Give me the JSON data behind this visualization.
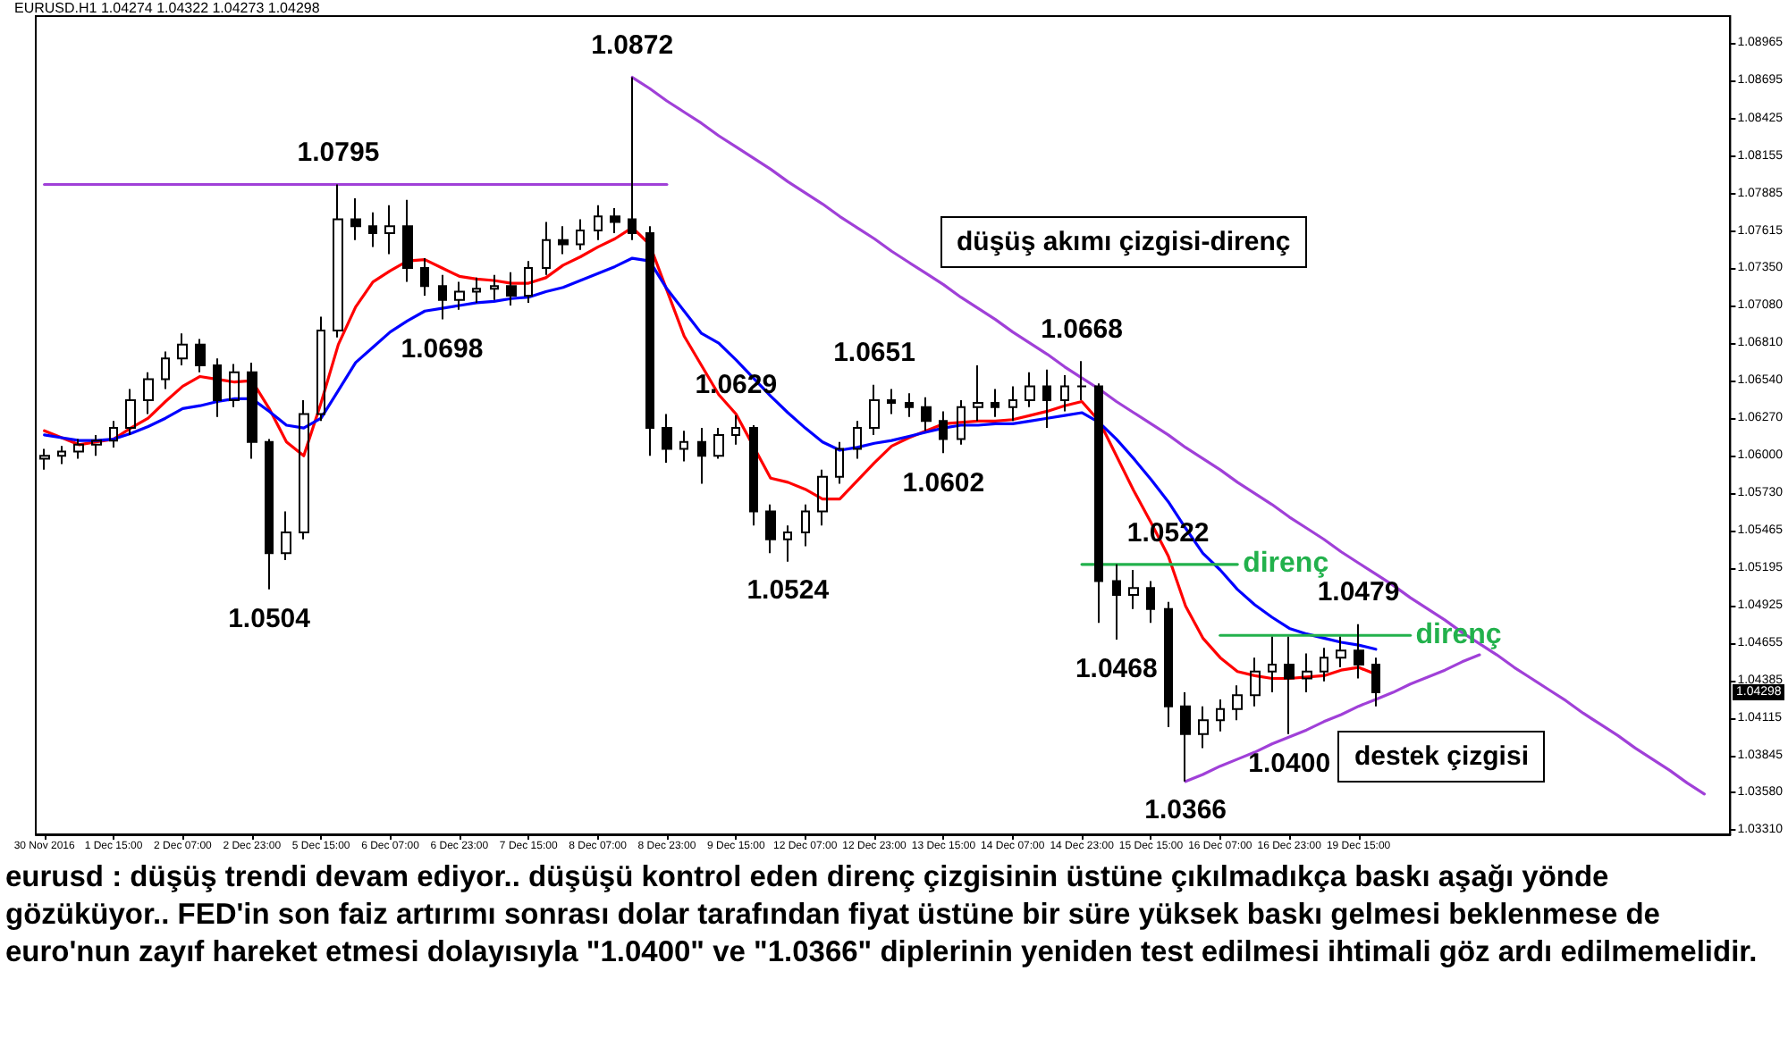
{
  "chart_data": {
    "type": "candlestick",
    "color": "#000000",
    "ylim": [
      1.0328,
      1.0916
    ],
    "yticks": [
      1.08965,
      1.08695,
      1.08425,
      1.08155,
      1.07885,
      1.07615,
      {
        "value": 1.0735,
        "label": "1.07350"
      },
      {
        "value": 1.0708,
        "label": "1.07080"
      },
      {
        "value": 1.0681,
        "label": "1.06810"
      },
      {
        "value": 1.0654,
        "label": "1.06540"
      },
      {
        "value": 1.0627,
        "label": "1.06270"
      },
      {
        "value": 1.06,
        "label": "1.06000"
      },
      {
        "value": 1.0573,
        "label": "1.05730"
      },
      1.05465,
      1.05195,
      1.04925,
      1.04655,
      1.04385,
      1.04115,
      1.03845,
      {
        "value": 1.0358,
        "label": "1.03580"
      },
      {
        "value": 1.0331,
        "label": "1.03310"
      }
    ],
    "marker": "none",
    "grid": false,
    "categories": [
      "30 Nov 2016",
      null,
      null,
      null,
      "1 Dec 15:00",
      null,
      null,
      null,
      "2 Dec 07:00",
      null,
      null,
      null,
      "2 Dec 23:00",
      null,
      null,
      null,
      "5 Dec 15:00",
      null,
      null,
      null,
      "6 Dec 07:00",
      null,
      null,
      null,
      "6 Dec 23:00",
      null,
      null,
      null,
      "7 Dec 15:00",
      null,
      null,
      null,
      "8 Dec 07:00",
      null,
      null,
      null,
      "8 Dec 23:00",
      null,
      null,
      null,
      "9 Dec 15:00",
      null,
      null,
      null,
      "12 Dec 07:00",
      null,
      null,
      null,
      "12 Dec 23:00",
      null,
      null,
      null,
      "13 Dec 15:00",
      null,
      null,
      null,
      "14 Dec 07:00",
      null,
      null,
      null,
      "14 Dec 23:00",
      null,
      null,
      null,
      "15 Dec 15:00",
      null,
      null,
      null,
      "16 Dec 07:00",
      null,
      null,
      null,
      "16 Dec 23:00",
      null,
      null,
      null,
      "19 Dec 15:00",
      null,
      null,
      null,
      null,
      null,
      null,
      null,
      null,
      null,
      null,
      null,
      null,
      null,
      null,
      null,
      null,
      null,
      null,
      null,
      null,
      null
    ],
    "ohlc": [
      [
        1.0598,
        1.0605,
        1.059,
        1.06
      ],
      [
        1.06,
        1.0607,
        1.0594,
        1.0603
      ],
      [
        1.0603,
        1.0612,
        1.0598,
        1.0608
      ],
      [
        1.0608,
        1.0615,
        1.06,
        1.0611
      ],
      [
        1.0611,
        1.0625,
        1.0606,
        1.062
      ],
      [
        1.062,
        1.0648,
        1.0615,
        1.064
      ],
      [
        1.064,
        1.066,
        1.063,
        1.0655
      ],
      [
        1.0655,
        1.0675,
        1.0648,
        1.067
      ],
      [
        1.067,
        1.0688,
        1.0665,
        1.068
      ],
      [
        1.068,
        1.0684,
        1.066,
        1.0665
      ],
      [
        1.0665,
        1.067,
        1.0628,
        1.064
      ],
      [
        1.064,
        1.0666,
        1.0635,
        1.066
      ],
      [
        1.066,
        1.0667,
        1.0598,
        1.061
      ],
      [
        1.061,
        1.0612,
        1.0504,
        1.053
      ],
      [
        1.053,
        1.056,
        1.0525,
        1.0545
      ],
      [
        1.0545,
        1.064,
        1.054,
        1.063
      ],
      [
        1.063,
        1.07,
        1.0625,
        1.069
      ],
      [
        1.069,
        1.0795,
        1.0685,
        1.077
      ],
      [
        1.077,
        1.0785,
        1.0755,
        1.0765
      ],
      [
        1.0765,
        1.0775,
        1.075,
        1.076
      ],
      [
        1.076,
        1.078,
        1.0745,
        1.0765
      ],
      [
        1.0765,
        1.0784,
        1.0725,
        1.0735
      ],
      [
        1.0735,
        1.0742,
        1.0715,
        1.0722
      ],
      [
        1.0722,
        1.073,
        1.0698,
        1.0712
      ],
      [
        1.0712,
        1.0725,
        1.0705,
        1.0718
      ],
      [
        1.0718,
        1.0728,
        1.071,
        1.072
      ],
      [
        1.072,
        1.073,
        1.0712,
        1.0722
      ],
      [
        1.0722,
        1.0732,
        1.0708,
        1.0715
      ],
      [
        1.0715,
        1.074,
        1.071,
        1.0735
      ],
      [
        1.0735,
        1.0768,
        1.073,
        1.0755
      ],
      [
        1.0755,
        1.0765,
        1.0745,
        1.0752
      ],
      [
        1.0752,
        1.077,
        1.0748,
        1.0762
      ],
      [
        1.0762,
        1.078,
        1.0755,
        1.0772
      ],
      [
        1.0772,
        1.0778,
        1.076,
        1.0768
      ],
      [
        1.077,
        1.0872,
        1.0755,
        1.076
      ],
      [
        1.076,
        1.0765,
        1.06,
        1.062
      ],
      [
        1.062,
        1.063,
        1.0595,
        1.0605
      ],
      [
        1.0605,
        1.0618,
        1.0596,
        1.061
      ],
      [
        1.061,
        1.062,
        1.058,
        1.06
      ],
      [
        1.06,
        1.062,
        1.0598,
        1.0615
      ],
      [
        1.0615,
        1.0629,
        1.0608,
        1.062
      ],
      [
        1.062,
        1.0622,
        1.055,
        1.056
      ],
      [
        1.056,
        1.0565,
        1.053,
        1.054
      ],
      [
        1.054,
        1.055,
        1.0524,
        1.0545
      ],
      [
        1.0545,
        1.0565,
        1.0535,
        1.056
      ],
      [
        1.056,
        1.059,
        1.055,
        1.0585
      ],
      [
        1.0585,
        1.061,
        1.058,
        1.0605
      ],
      [
        1.0605,
        1.0625,
        1.0598,
        1.062
      ],
      [
        1.062,
        1.0651,
        1.0615,
        1.064
      ],
      [
        1.064,
        1.0648,
        1.063,
        1.0638
      ],
      [
        1.0638,
        1.0645,
        1.0628,
        1.0635
      ],
      [
        1.0635,
        1.0642,
        1.0618,
        1.0625
      ],
      [
        1.0625,
        1.0632,
        1.0602,
        1.0612
      ],
      [
        1.0612,
        1.064,
        1.0608,
        1.0635
      ],
      [
        1.0635,
        1.0665,
        1.0625,
        1.0638
      ],
      [
        1.0638,
        1.0648,
        1.0628,
        1.0635
      ],
      [
        1.0635,
        1.065,
        1.0625,
        1.064
      ],
      [
        1.064,
        1.066,
        1.0635,
        1.065
      ],
      [
        1.065,
        1.0662,
        1.062,
        1.064
      ],
      [
        1.064,
        1.0658,
        1.0632,
        1.065
      ],
      [
        1.065,
        1.0668,
        1.064,
        1.065
      ],
      [
        1.065,
        1.0652,
        1.048,
        1.051
      ],
      [
        1.051,
        1.0522,
        1.0468,
        1.05
      ],
      [
        1.05,
        1.0518,
        1.049,
        1.0505
      ],
      [
        1.0505,
        1.051,
        1.048,
        1.049
      ],
      [
        1.049,
        1.0495,
        1.0405,
        1.042
      ],
      [
        1.042,
        1.043,
        1.0366,
        1.04
      ],
      [
        1.04,
        1.042,
        1.039,
        1.041
      ],
      [
        1.041,
        1.0425,
        1.0402,
        1.0418
      ],
      [
        1.0418,
        1.0435,
        1.041,
        1.0428
      ],
      [
        1.0428,
        1.0455,
        1.042,
        1.0445
      ],
      [
        1.0445,
        1.047,
        1.043,
        1.045
      ],
      [
        1.045,
        1.047,
        1.04,
        1.044
      ],
      [
        1.044,
        1.0458,
        1.043,
        1.0445
      ],
      [
        1.0445,
        1.0462,
        1.0438,
        1.0455
      ],
      [
        1.0455,
        1.047,
        1.0448,
        1.046
      ],
      [
        1.046,
        1.0479,
        1.044,
        1.045
      ],
      [
        1.045,
        1.0455,
        1.042,
        1.043
      ],
      null,
      null,
      null,
      null,
      null,
      null,
      null,
      null,
      null,
      null,
      null,
      null,
      null,
      null,
      null,
      null,
      null,
      null,
      null,
      null
    ],
    "series": [
      {
        "type": "line",
        "color": "#ff0000",
        "values": [
          1.0618,
          1.0613,
          1.0608,
          1.061,
          1.0612,
          1.062,
          1.0627,
          1.0639,
          1.065,
          1.0657,
          1.0655,
          1.0653,
          1.0654,
          1.0634,
          1.061,
          1.06,
          1.0638,
          1.068,
          1.0707,
          1.0725,
          1.0733,
          1.074,
          1.0741,
          1.0735,
          1.0729,
          1.0727,
          1.0726,
          1.0724,
          1.0724,
          1.0728,
          1.0737,
          1.0743,
          1.075,
          1.0756,
          1.0764,
          1.0752,
          1.0719,
          1.0686,
          1.0665,
          1.0644,
          1.063,
          1.0607,
          1.0584,
          1.0581,
          1.0576,
          1.0569,
          1.0569,
          1.0582,
          1.0595,
          1.0607,
          1.0613,
          1.0618,
          1.0623,
          1.0624,
          1.0625,
          1.0625,
          1.0626,
          1.0629,
          1.0632,
          1.0636,
          1.0639,
          1.0625,
          1.06,
          1.0575,
          1.0552,
          1.0528,
          1.0492,
          1.0469,
          1.0455,
          1.0445,
          1.0442,
          1.044,
          1.044,
          1.0441,
          1.0442,
          1.0446,
          1.0448,
          1.0443,
          null,
          null,
          null,
          null,
          null,
          null,
          null,
          null,
          null,
          null,
          null,
          null,
          null,
          null,
          null,
          null,
          null,
          null,
          null,
          null
        ]
      },
      {
        "type": "line",
        "color": "#0000ff",
        "values": [
          1.0615,
          1.0613,
          1.0611,
          1.0611,
          1.0612,
          1.0616,
          1.0621,
          1.0627,
          1.0634,
          1.0636,
          1.0639,
          1.0641,
          1.0641,
          1.0632,
          1.0622,
          1.062,
          1.0627,
          1.0647,
          1.0667,
          1.0678,
          1.0689,
          1.0697,
          1.0704,
          1.0706,
          1.0708,
          1.071,
          1.0711,
          1.0713,
          1.0714,
          1.0718,
          1.0721,
          1.0726,
          1.0731,
          1.0736,
          1.0742,
          1.074,
          1.072,
          1.0704,
          1.0688,
          1.0681,
          1.0669,
          1.0656,
          1.0643,
          1.0631,
          1.062,
          1.061,
          1.0604,
          1.0606,
          1.0609,
          1.0611,
          1.0614,
          1.0617,
          1.062,
          1.0622,
          1.0622,
          1.0623,
          1.0623,
          1.0625,
          1.0627,
          1.0629,
          1.0631,
          1.0624,
          1.0612,
          1.0598,
          1.0583,
          1.0567,
          1.0548,
          1.053,
          1.0518,
          1.0504,
          1.0493,
          1.0484,
          1.0476,
          1.0472,
          1.0469,
          1.0466,
          1.0464,
          1.0461,
          null,
          null,
          null,
          null,
          null,
          null,
          null,
          null,
          null,
          null,
          null,
          null,
          null,
          null,
          null,
          null,
          null,
          null,
          null,
          null
        ]
      },
      {
        "type": "line",
        "color": "#a040d8",
        "values": [
          1.0795,
          1.0795,
          1.0795,
          1.0795,
          1.0795,
          1.0795,
          1.0795,
          1.0795,
          1.0795,
          1.0795,
          1.0795,
          1.0795,
          1.0795,
          1.0795,
          1.0795,
          1.0795,
          1.0795,
          1.0795,
          1.0795,
          1.0795,
          1.0795,
          1.0795,
          1.0795,
          1.0795,
          1.0795,
          1.0795,
          1.0795,
          1.0795,
          1.0795,
          1.0795,
          1.0795,
          1.0795,
          1.0795,
          1.0795,
          1.0795,
          1.0795,
          1.0795,
          null,
          null,
          null,
          null,
          null,
          null,
          null,
          null,
          null,
          null,
          null,
          null,
          null,
          null,
          null,
          null,
          null,
          null,
          null,
          null,
          null,
          null,
          null,
          null,
          null,
          null,
          null,
          null,
          null,
          null,
          null,
          null,
          null,
          null,
          null,
          null,
          null,
          null,
          null,
          null,
          null,
          null,
          null,
          null,
          null,
          null,
          null,
          null,
          null,
          null,
          null,
          null,
          null,
          null,
          null,
          null,
          null,
          null,
          null,
          null,
          null
        ]
      },
      {
        "type": "line",
        "name": "düşüş akımı çizgisi-direnç",
        "color": "#a040d8",
        "values": [
          null,
          null,
          null,
          null,
          null,
          null,
          null,
          null,
          null,
          null,
          null,
          null,
          null,
          null,
          null,
          null,
          null,
          null,
          null,
          null,
          null,
          null,
          null,
          null,
          null,
          null,
          null,
          null,
          null,
          null,
          null,
          null,
          null,
          null,
          1.0872,
          1.0864,
          1.0855,
          1.0847,
          1.0839,
          1.083,
          1.0822,
          1.0814,
          1.0806,
          1.0797,
          1.0789,
          1.0781,
          1.0772,
          1.0764,
          1.0756,
          1.0747,
          1.0739,
          1.0731,
          1.0723,
          1.0714,
          1.0706,
          1.0698,
          1.0689,
          1.0681,
          1.0673,
          1.0664,
          1.0656,
          1.0648,
          1.0639,
          1.0631,
          1.0623,
          1.0615,
          1.0606,
          1.0598,
          1.059,
          1.0581,
          1.0573,
          1.0565,
          1.0556,
          1.0548,
          1.054,
          1.0531,
          1.0523,
          1.0515,
          1.0507,
          1.0498,
          1.049,
          1.0482,
          1.0473,
          1.0465,
          1.0457,
          1.0448,
          1.044,
          1.0432,
          1.0424,
          1.0415,
          1.0407,
          1.0399,
          1.039,
          1.0382,
          1.0374,
          1.0365,
          1.0357,
          null
        ]
      },
      {
        "type": "line",
        "name": "destek çizgisi",
        "color": "#a040d8",
        "values": [
          null,
          null,
          null,
          null,
          null,
          null,
          null,
          null,
          null,
          null,
          null,
          null,
          null,
          null,
          null,
          null,
          null,
          null,
          null,
          null,
          null,
          null,
          null,
          null,
          null,
          null,
          null,
          null,
          null,
          null,
          null,
          null,
          null,
          null,
          null,
          null,
          null,
          null,
          null,
          null,
          null,
          null,
          null,
          null,
          null,
          null,
          null,
          null,
          null,
          null,
          null,
          null,
          null,
          null,
          null,
          null,
          null,
          null,
          null,
          null,
          null,
          null,
          null,
          null,
          null,
          null,
          1.0366,
          1.0371,
          1.0377,
          1.0382,
          1.0387,
          1.0393,
          1.0398,
          1.0403,
          1.0409,
          1.0414,
          1.042,
          1.0425,
          1.043,
          1.0436,
          1.0441,
          1.0446,
          1.0452,
          1.0457,
          null,
          null,
          null,
          null,
          null,
          null,
          null,
          null,
          null,
          null,
          null,
          null,
          null,
          null
        ]
      },
      {
        "type": "line",
        "name": "direnç",
        "color": "#22b14c",
        "values": [
          null,
          null,
          null,
          null,
          null,
          null,
          null,
          null,
          null,
          null,
          null,
          null,
          null,
          null,
          null,
          null,
          null,
          null,
          null,
          null,
          null,
          null,
          null,
          null,
          null,
          null,
          null,
          null,
          null,
          null,
          null,
          null,
          null,
          null,
          null,
          null,
          null,
          null,
          null,
          null,
          null,
          null,
          null,
          null,
          null,
          null,
          null,
          null,
          null,
          null,
          null,
          null,
          null,
          null,
          null,
          null,
          null,
          null,
          null,
          null,
          1.0522,
          1.0522,
          1.0522,
          1.0522,
          1.0522,
          1.0522,
          1.0522,
          1.0522,
          1.0522,
          1.0522,
          null,
          null,
          null,
          null,
          null,
          null,
          null,
          null,
          null,
          null,
          null,
          null,
          null,
          null,
          null,
          null,
          null,
          null,
          null,
          null,
          null,
          null,
          null,
          null,
          null,
          null,
          null,
          null
        ]
      },
      {
        "type": "line",
        "name": "direnç",
        "color": "#22b14c",
        "values": [
          null,
          null,
          null,
          null,
          null,
          null,
          null,
          null,
          null,
          null,
          null,
          null,
          null,
          null,
          null,
          null,
          null,
          null,
          null,
          null,
          null,
          null,
          null,
          null,
          null,
          null,
          null,
          null,
          null,
          null,
          null,
          null,
          null,
          null,
          null,
          null,
          null,
          null,
          null,
          null,
          null,
          null,
          null,
          null,
          null,
          null,
          null,
          null,
          null,
          null,
          null,
          null,
          null,
          null,
          null,
          null,
          null,
          null,
          null,
          null,
          null,
          null,
          null,
          null,
          null,
          null,
          null,
          null,
          1.0471,
          1.0471,
          1.0471,
          1.0471,
          1.0471,
          1.0471,
          1.0471,
          1.0471,
          1.0471,
          1.0471,
          1.0471,
          1.0471,
          null,
          null,
          null,
          null,
          null,
          null,
          null,
          null,
          null,
          null,
          null,
          null,
          null,
          null,
          null,
          null,
          null,
          null
        ]
      }
    ],
    "annotations": [
      "EURUSD.H1  1.04274 1.04322 1.04273 1.04298",
      {
        "text": "1.0872",
        "y": 1.0872
      },
      {
        "text": "1.0795",
        "y": 1.0795
      },
      {
        "text": "1.0698",
        "y": 1.0698
      },
      {
        "text": "1.0504",
        "y": 1.0504
      },
      {
        "text": "1.0629",
        "y": 1.0629
      },
      {
        "text": "1.0651",
        "y": 1.0651
      },
      {
        "text": "1.0602",
        "y": 1.0602
      },
      {
        "text": "1.0524",
        "y": 1.0524
      },
      {
        "text": "1.0668",
        "y": 1.0668
      },
      {
        "text": "1.0522",
        "y": 1.0522
      },
      {
        "text": "1.0468",
        "y": 1.0468
      },
      {
        "text": "1.0366",
        "y": 1.0366
      },
      {
        "text": "1.0400",
        "y": 1.04
      },
      {
        "text": "1.0479",
        "y": 1.0479
      },
      {
        "text": "1.04298",
        "y": 1.04298
      },
      "eurusd : düşüş trendi devam ediyor.. düşüşü kontrol eden direnç çizgisinin üstüne çıkılmadıkça baskı aşağı yönde gözüküyor.. FED'in son faiz artırımı sonrası dolar tarafından fiyat üstüne bir süre yüksek baskı gelmesi beklenmese de euro'nun zayıf hareket etmesi dolayısıyla \"1.0400\" ve \"1.0366\" diplerinin yeniden test edilmesi ihtimali göz ardı edilmemelidir."
    ]
  }
}
